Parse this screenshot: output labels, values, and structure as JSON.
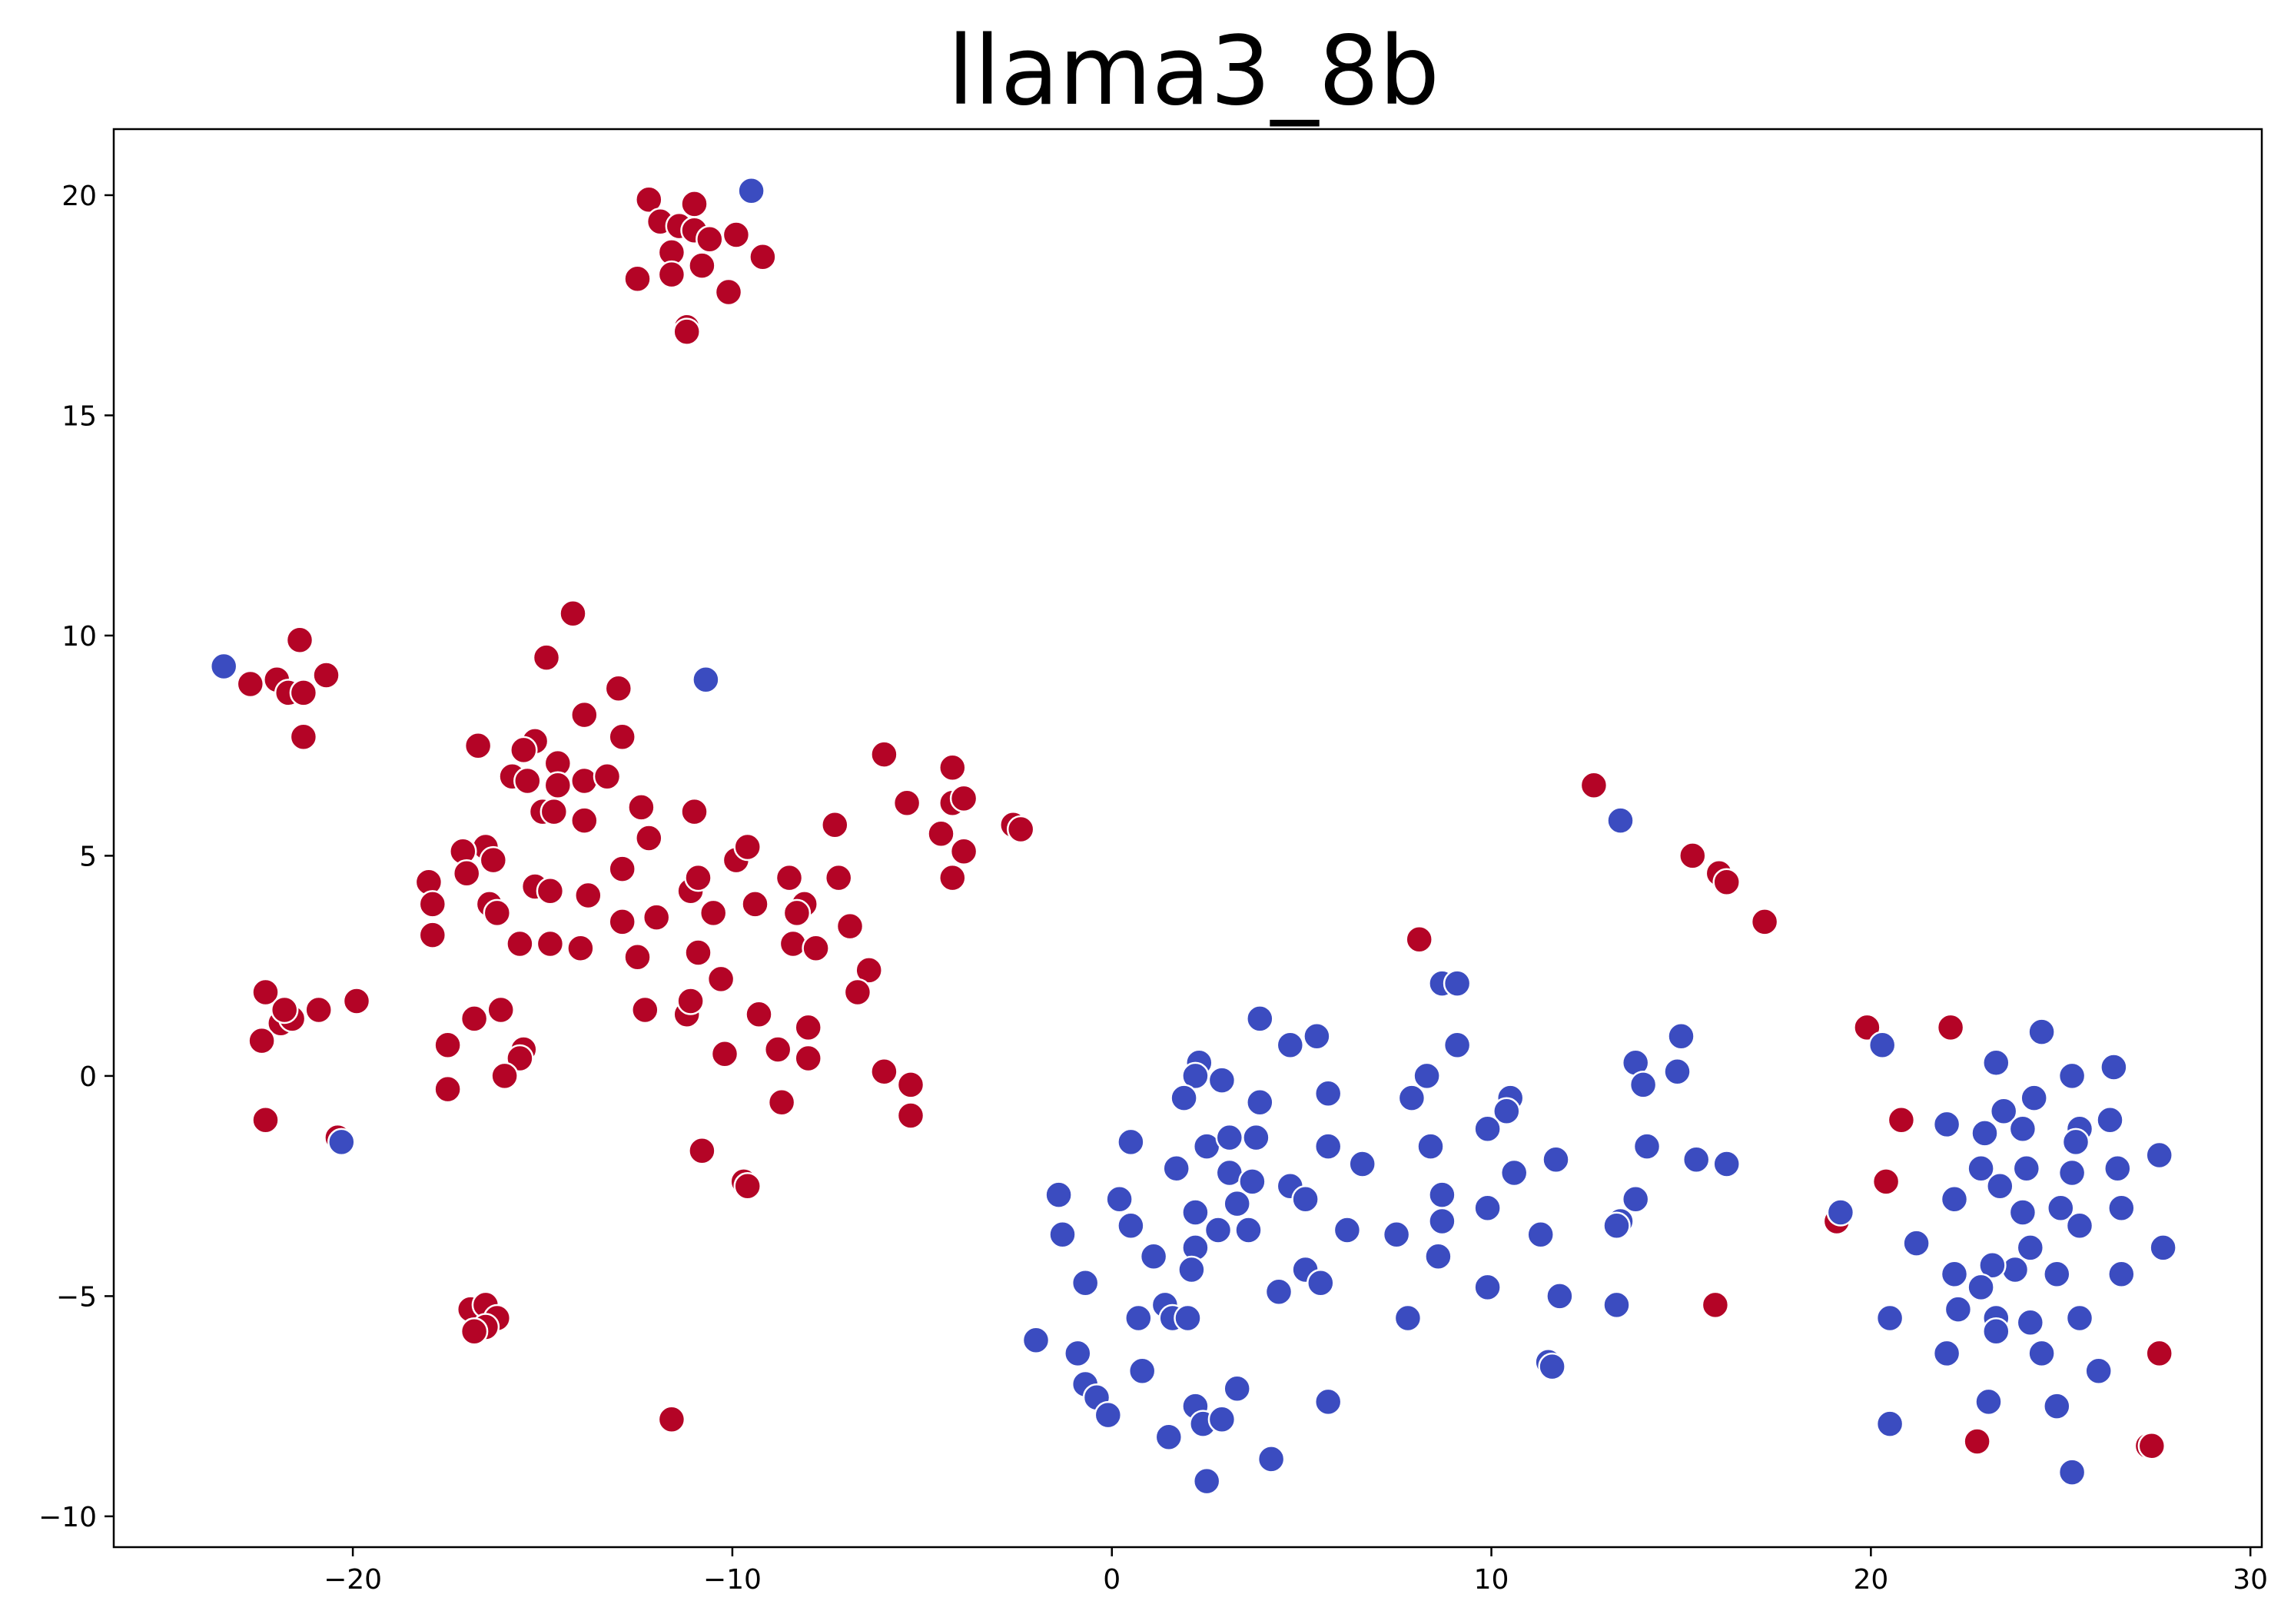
{
  "chart_data": {
    "type": "scatter",
    "title": "llama3_8b",
    "xlabel": "",
    "ylabel": "",
    "xlim": [
      -26.3,
      30.3
    ],
    "ylim": [
      -10.7,
      21.5
    ],
    "xticks": [
      -20,
      -10,
      0,
      10,
      20,
      30
    ],
    "yticks": [
      -10,
      -5,
      0,
      5,
      10,
      15,
      20
    ],
    "xtick_labels": [
      "−20",
      "−10",
      "0",
      "10",
      "20",
      "30"
    ],
    "ytick_labels": [
      "−10",
      "−5",
      "0",
      "5",
      "10",
      "15",
      "20"
    ],
    "grid": false,
    "legend": false,
    "colors": {
      "red": "#b40426",
      "blue": "#3b4cc0",
      "marker_edge": "#ffffff"
    },
    "series": [
      {
        "color": "red",
        "points": [
          [
            -12.2,
            19.9
          ],
          [
            -11.0,
            19.8
          ],
          [
            -11.9,
            19.4
          ],
          [
            -11.4,
            19.3
          ],
          [
            -11.0,
            19.2
          ],
          [
            -10.6,
            19.0
          ],
          [
            -9.9,
            19.1
          ],
          [
            -11.6,
            18.7
          ],
          [
            -9.2,
            18.6
          ],
          [
            -11.6,
            18.2
          ],
          [
            -10.8,
            18.4
          ],
          [
            -12.5,
            18.1
          ],
          [
            -10.1,
            17.8
          ],
          [
            -11.2,
            17.0
          ],
          [
            -11.2,
            16.9
          ],
          [
            -21.4,
            9.9
          ],
          [
            -22.0,
            9.0
          ],
          [
            -22.7,
            8.9
          ],
          [
            -21.7,
            8.7
          ],
          [
            -21.3,
            8.7
          ],
          [
            -20.7,
            9.1
          ],
          [
            -21.3,
            7.7
          ],
          [
            -14.2,
            10.5
          ],
          [
            -14.9,
            9.5
          ],
          [
            -13.0,
            8.8
          ],
          [
            -13.9,
            8.2
          ],
          [
            -12.9,
            7.7
          ],
          [
            -16.7,
            7.5
          ],
          [
            -15.2,
            7.6
          ],
          [
            -15.5,
            7.4
          ],
          [
            -14.6,
            7.1
          ],
          [
            -15.8,
            6.8
          ],
          [
            -15.4,
            6.7
          ],
          [
            -14.6,
            6.6
          ],
          [
            -13.9,
            6.7
          ],
          [
            -13.3,
            6.8
          ],
          [
            -15.0,
            6.0
          ],
          [
            -14.7,
            6.0
          ],
          [
            -13.9,
            5.8
          ],
          [
            -12.4,
            6.1
          ],
          [
            -11.0,
            6.0
          ],
          [
            -12.2,
            5.4
          ],
          [
            -16.5,
            5.2
          ],
          [
            -17.1,
            5.1
          ],
          [
            -16.3,
            4.9
          ],
          [
            -17.0,
            4.6
          ],
          [
            -18.0,
            4.4
          ],
          [
            -15.2,
            4.3
          ],
          [
            -14.8,
            4.2
          ],
          [
            -13.8,
            4.1
          ],
          [
            -12.9,
            4.7
          ],
          [
            -11.1,
            4.2
          ],
          [
            -10.9,
            4.5
          ],
          [
            -9.9,
            4.9
          ],
          [
            -9.6,
            5.2
          ],
          [
            -17.9,
            3.9
          ],
          [
            -16.4,
            3.9
          ],
          [
            -16.2,
            3.7
          ],
          [
            -17.9,
            3.2
          ],
          [
            -15.6,
            3.0
          ],
          [
            -14.8,
            3.0
          ],
          [
            -14.0,
            2.9
          ],
          [
            -12.9,
            3.5
          ],
          [
            -12.0,
            3.6
          ],
          [
            -12.5,
            2.7
          ],
          [
            -10.9,
            2.8
          ],
          [
            -10.5,
            3.7
          ],
          [
            -9.4,
            3.9
          ],
          [
            -8.5,
            4.5
          ],
          [
            -8.1,
            3.9
          ],
          [
            -8.3,
            3.7
          ],
          [
            -8.4,
            3.0
          ],
          [
            -7.3,
            5.7
          ],
          [
            -7.2,
            4.5
          ],
          [
            -6.9,
            3.4
          ],
          [
            -7.8,
            2.9
          ],
          [
            -6.4,
            2.4
          ],
          [
            -6.7,
            1.9
          ],
          [
            -10.3,
            2.2
          ],
          [
            -11.2,
            1.4
          ],
          [
            -11.1,
            1.7
          ],
          [
            -12.3,
            1.5
          ],
          [
            -9.3,
            1.4
          ],
          [
            -8.0,
            1.1
          ],
          [
            -8.8,
            0.6
          ],
          [
            -8.0,
            0.4
          ],
          [
            -10.2,
            0.5
          ],
          [
            -16.8,
            1.3
          ],
          [
            -16.1,
            1.5
          ],
          [
            -17.5,
            0.7
          ],
          [
            -15.5,
            0.6
          ],
          [
            -15.6,
            0.4
          ],
          [
            -16.0,
            0.0
          ],
          [
            -17.5,
            -0.3
          ],
          [
            -8.7,
            -0.6
          ],
          [
            -10.8,
            -1.7
          ],
          [
            -9.7,
            -2.4
          ],
          [
            -9.6,
            -2.5
          ],
          [
            -6.0,
            7.3
          ],
          [
            -5.4,
            6.2
          ],
          [
            -4.2,
            7.0
          ],
          [
            -4.2,
            6.2
          ],
          [
            -3.9,
            6.3
          ],
          [
            -2.6,
            5.7
          ],
          [
            -2.4,
            5.6
          ],
          [
            -4.5,
            5.5
          ],
          [
            -3.9,
            5.1
          ],
          [
            -4.2,
            4.5
          ],
          [
            -6.0,
            0.1
          ],
          [
            -5.3,
            -0.2
          ],
          [
            -5.3,
            -0.9
          ],
          [
            -22.3,
            1.9
          ],
          [
            -21.9,
            1.2
          ],
          [
            -21.6,
            1.3
          ],
          [
            -21.8,
            1.5
          ],
          [
            -20.9,
            1.5
          ],
          [
            -19.9,
            1.7
          ],
          [
            -22.4,
            0.8
          ],
          [
            -22.3,
            -1.0
          ],
          [
            -20.4,
            -1.4
          ],
          [
            -16.9,
            -5.3
          ],
          [
            -16.5,
            -5.2
          ],
          [
            -16.2,
            -5.5
          ],
          [
            -16.5,
            -5.7
          ],
          [
            -16.8,
            -5.8
          ],
          [
            -11.6,
            -7.8
          ],
          [
            12.7,
            6.6
          ],
          [
            15.3,
            5.0
          ],
          [
            16.0,
            4.6
          ],
          [
            16.2,
            4.4
          ],
          [
            17.2,
            3.5
          ],
          [
            8.1,
            3.1
          ],
          [
            15.9,
            -5.2
          ],
          [
            19.9,
            1.1
          ],
          [
            22.1,
            1.1
          ],
          [
            20.8,
            -1.0
          ],
          [
            20.4,
            -2.4
          ],
          [
            19.1,
            -3.3
          ],
          [
            22.8,
            -8.3
          ],
          [
            27.3,
            -8.4
          ],
          [
            27.4,
            -8.4
          ],
          [
            27.6,
            -6.3
          ]
        ]
      },
      {
        "color": "blue",
        "points": [
          [
            -9.5,
            20.1
          ],
          [
            -23.4,
            9.3
          ],
          [
            -10.7,
            9.0
          ],
          [
            -20.3,
            -1.5
          ],
          [
            13.4,
            5.8
          ],
          [
            8.7,
            2.1
          ],
          [
            9.1,
            2.1
          ],
          [
            3.9,
            1.3
          ],
          [
            5.4,
            0.9
          ],
          [
            4.7,
            0.7
          ],
          [
            9.1,
            0.7
          ],
          [
            15.0,
            0.9
          ],
          [
            13.8,
            0.3
          ],
          [
            14.9,
            0.1
          ],
          [
            14.0,
            -0.2
          ],
          [
            2.3,
            0.3
          ],
          [
            2.2,
            0.0
          ],
          [
            2.9,
            -0.1
          ],
          [
            1.9,
            -0.5
          ],
          [
            3.9,
            -0.6
          ],
          [
            5.7,
            -0.4
          ],
          [
            8.3,
            0.0
          ],
          [
            7.9,
            -0.5
          ],
          [
            10.5,
            -0.5
          ],
          [
            10.4,
            -0.8
          ],
          [
            9.9,
            -1.2
          ],
          [
            0.5,
            -1.5
          ],
          [
            2.5,
            -1.6
          ],
          [
            3.1,
            -1.4
          ],
          [
            3.8,
            -1.4
          ],
          [
            5.7,
            -1.6
          ],
          [
            6.6,
            -2.0
          ],
          [
            8.4,
            -1.6
          ],
          [
            10.6,
            -2.2
          ],
          [
            11.7,
            -1.9
          ],
          [
            14.1,
            -1.6
          ],
          [
            15.4,
            -1.9
          ],
          [
            16.2,
            -2.0
          ],
          [
            1.7,
            -2.1
          ],
          [
            3.1,
            -2.2
          ],
          [
            3.3,
            -2.9
          ],
          [
            3.7,
            -2.4
          ],
          [
            4.7,
            -2.5
          ],
          [
            5.1,
            -2.8
          ],
          [
            8.7,
            -2.7
          ],
          [
            8.7,
            -3.3
          ],
          [
            9.9,
            -3.0
          ],
          [
            13.8,
            -2.8
          ],
          [
            13.4,
            -3.3
          ],
          [
            13.3,
            -3.4
          ],
          [
            11.3,
            -3.6
          ],
          [
            6.2,
            -3.5
          ],
          [
            7.5,
            -3.6
          ],
          [
            3.6,
            -3.5
          ],
          [
            2.2,
            -3.1
          ],
          [
            2.8,
            -3.5
          ],
          [
            2.2,
            -3.9
          ],
          [
            -1.4,
            -2.7
          ],
          [
            -1.3,
            -3.6
          ],
          [
            0.2,
            -2.8
          ],
          [
            0.5,
            -3.4
          ],
          [
            1.1,
            -4.1
          ],
          [
            2.1,
            -4.4
          ],
          [
            5.1,
            -4.4
          ],
          [
            5.5,
            -4.7
          ],
          [
            4.4,
            -4.9
          ],
          [
            8.6,
            -4.1
          ],
          [
            9.9,
            -4.8
          ],
          [
            11.8,
            -5.0
          ],
          [
            13.3,
            -5.2
          ],
          [
            7.8,
            -5.5
          ],
          [
            1.4,
            -5.2
          ],
          [
            1.6,
            -5.5
          ],
          [
            2.0,
            -5.5
          ],
          [
            0.7,
            -5.5
          ],
          [
            -0.7,
            -4.7
          ],
          [
            -2.0,
            -6.0
          ],
          [
            -0.9,
            -6.3
          ],
          [
            -0.7,
            -7.0
          ],
          [
            -0.4,
            -7.3
          ],
          [
            -0.1,
            -7.7
          ],
          [
            0.8,
            -6.7
          ],
          [
            2.2,
            -7.5
          ],
          [
            2.4,
            -7.9
          ],
          [
            3.3,
            -7.1
          ],
          [
            2.9,
            -7.8
          ],
          [
            1.5,
            -8.2
          ],
          [
            4.2,
            -8.7
          ],
          [
            2.5,
            -9.2
          ],
          [
            5.7,
            -7.4
          ],
          [
            11.5,
            -6.5
          ],
          [
            11.6,
            -6.6
          ],
          [
            20.3,
            0.7
          ],
          [
            23.3,
            0.3
          ],
          [
            24.5,
            1.0
          ],
          [
            26.4,
            0.2
          ],
          [
            25.3,
            0.0
          ],
          [
            24.3,
            -0.5
          ],
          [
            23.5,
            -0.8
          ],
          [
            22.0,
            -1.1
          ],
          [
            23.0,
            -1.3
          ],
          [
            24.0,
            -1.2
          ],
          [
            25.5,
            -1.2
          ],
          [
            25.4,
            -1.5
          ],
          [
            26.3,
            -1.0
          ],
          [
            27.6,
            -1.8
          ],
          [
            26.5,
            -2.1
          ],
          [
            25.3,
            -2.2
          ],
          [
            24.1,
            -2.1
          ],
          [
            22.9,
            -2.1
          ],
          [
            23.4,
            -2.5
          ],
          [
            22.2,
            -2.8
          ],
          [
            24.0,
            -3.1
          ],
          [
            25.0,
            -3.0
          ],
          [
            25.5,
            -3.4
          ],
          [
            26.6,
            -3.0
          ],
          [
            19.2,
            -3.1
          ],
          [
            21.2,
            -3.8
          ],
          [
            24.2,
            -3.9
          ],
          [
            23.8,
            -4.4
          ],
          [
            23.2,
            -4.3
          ],
          [
            22.2,
            -4.5
          ],
          [
            22.9,
            -4.8
          ],
          [
            24.9,
            -4.5
          ],
          [
            26.6,
            -4.5
          ],
          [
            27.7,
            -3.9
          ],
          [
            20.5,
            -5.5
          ],
          [
            22.3,
            -5.3
          ],
          [
            23.3,
            -5.5
          ],
          [
            23.3,
            -5.8
          ],
          [
            24.2,
            -5.6
          ],
          [
            25.5,
            -5.5
          ],
          [
            24.5,
            -6.3
          ],
          [
            22.0,
            -6.3
          ],
          [
            26.0,
            -6.7
          ],
          [
            23.1,
            -7.4
          ],
          [
            24.9,
            -7.5
          ],
          [
            20.5,
            -7.9
          ],
          [
            25.3,
            -9.0
          ]
        ]
      }
    ]
  }
}
